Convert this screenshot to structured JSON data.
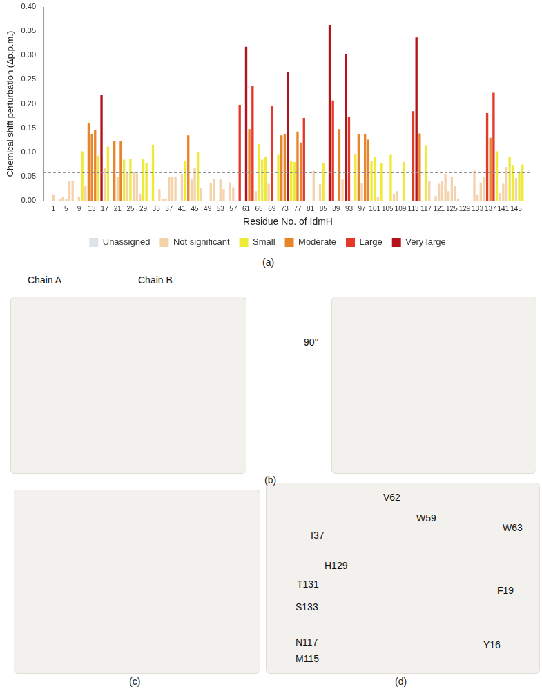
{
  "chart_data": {
    "type": "bar",
    "x_label": "Residue No. of IdmH",
    "y_label": "Chemical shift perturbation (Δp.p.m.)",
    "xlim": [
      0,
      148
    ],
    "xticks": [
      1,
      5,
      9,
      13,
      17,
      21,
      25,
      29,
      33,
      37,
      41,
      45,
      49,
      53,
      57,
      61,
      65,
      69,
      73,
      77,
      81,
      85,
      89,
      93,
      97,
      101,
      105,
      109,
      113,
      117,
      121,
      125,
      129,
      133,
      137,
      141,
      145
    ],
    "ylim": [
      0,
      0.4
    ],
    "yticks": [
      {
        "value": 0,
        "label": "0.00"
      },
      {
        "value": 0.05,
        "label": "0.05"
      },
      {
        "value": 0.1,
        "label": "0.10"
      },
      {
        "value": 0.15,
        "label": "0.15"
      },
      {
        "value": 0.2,
        "label": "0.20"
      },
      {
        "value": 0.25,
        "label": "0.25"
      },
      {
        "value": 0.3,
        "label": "0.30"
      },
      {
        "value": 0.35,
        "label": "0.35"
      },
      {
        "value": 0.4,
        "label": "0.40"
      }
    ],
    "threshold": 0.058,
    "grid": false,
    "legend": "bottom",
    "series": [
      {
        "name": "Unassigned",
        "color": "#dde3ea",
        "x": [
          2,
          8,
          19,
          31,
          33,
          40,
          48,
          49,
          52,
          55,
          58,
          60,
          70,
          80,
          81,
          83,
          86,
          89,
          94,
          104,
          105,
          109,
          111,
          112,
          116,
          119,
          128,
          129,
          130,
          131
        ],
        "values": [
          null,
          null,
          null,
          null,
          null,
          null,
          null,
          null,
          null,
          null,
          null,
          null,
          null,
          null,
          null,
          null,
          null,
          null,
          null,
          null,
          null,
          null,
          null,
          null,
          null,
          null,
          null,
          null,
          null,
          null
        ]
      },
      {
        "name": "Not significant",
        "color": "#f3d2ac",
        "x": [
          1,
          3,
          4,
          5,
          6,
          7,
          9,
          11,
          17,
          21,
          24,
          26,
          27,
          28,
          34,
          35,
          36,
          37,
          38,
          39,
          41,
          44,
          45,
          47,
          50,
          51,
          53,
          54,
          56,
          57,
          64,
          68,
          82,
          84,
          91,
          97,
          102,
          107,
          108,
          118,
          120,
          121,
          122,
          123,
          124,
          125,
          126,
          127,
          132,
          133,
          134,
          135,
          140,
          141,
          142,
          145
        ],
        "values": [
          0.012,
          0.004,
          0.008,
          0.004,
          0.04,
          0.042,
          0.008,
          0.03,
          0.068,
          0.05,
          0.06,
          0.06,
          0.056,
          0.015,
          0.024,
          0.004,
          0.005,
          0.05,
          0.05,
          0.05,
          0.055,
          0.044,
          0.068,
          0.027,
          0.037,
          0.046,
          0.044,
          0.024,
          0.038,
          0.028,
          0.02,
          0.035,
          0.062,
          0.034,
          0.044,
          0.036,
          0.008,
          0.015,
          0.02,
          0.04,
          0.01,
          0.035,
          0.04,
          0.055,
          0.02,
          0.05,
          0.03,
          0.005,
          0.062,
          0.012,
          0.038,
          0.05,
          0.016,
          0.035,
          0.07,
          0.047
        ]
      },
      {
        "name": "Small",
        "color": "#eeea3a",
        "x": [
          10,
          15,
          18,
          23,
          25,
          29,
          30,
          32,
          42,
          46,
          65,
          66,
          67,
          71,
          75,
          76,
          85,
          95,
          100,
          101,
          103,
          106,
          110,
          117,
          139,
          143,
          144,
          146,
          147
        ],
        "values": [
          0.102,
          0.093,
          0.112,
          0.085,
          0.086,
          0.086,
          0.077,
          0.116,
          0.082,
          0.1,
          0.117,
          0.085,
          0.09,
          0.095,
          0.082,
          0.08,
          0.078,
          0.096,
          0.082,
          0.091,
          0.078,
          0.095,
          0.08,
          0.115,
          0.102,
          0.09,
          0.074,
          0.06,
          0.075
        ]
      },
      {
        "name": "Moderate",
        "color": "#e8842a",
        "x": [
          12,
          13,
          14,
          20,
          22,
          43,
          62,
          72,
          73,
          77,
          78,
          90,
          96,
          98,
          99,
          115,
          137
        ],
        "values": [
          0.16,
          0.137,
          0.146,
          0.124,
          0.124,
          0.135,
          0.148,
          0.135,
          0.137,
          0.143,
          0.12,
          0.148,
          0.137,
          0.137,
          0.126,
          0.139,
          0.13
        ]
      },
      {
        "name": "Large",
        "color": "#e4392a",
        "x": [
          59,
          63,
          69,
          79,
          88,
          93,
          113,
          136,
          138
        ],
        "values": [
          0.198,
          0.237,
          0.195,
          0.171,
          0.207,
          0.174,
          0.185,
          0.181,
          0.223
        ]
      },
      {
        "name": "Very large",
        "color": "#b3141c",
        "x": [
          16,
          61,
          74,
          87,
          92,
          114
        ],
        "values": [
          0.218,
          0.318,
          0.265,
          0.363,
          0.302,
          0.337
        ]
      }
    ]
  },
  "panels": [
    {
      "label": "(a)"
    },
    {
      "label": "(b)",
      "texts": [
        "Chain A",
        "Chain B",
        "90°"
      ]
    },
    {
      "label": "(c)"
    },
    {
      "label": "(d)",
      "texts": [
        "I37",
        "V62",
        "W59",
        "W63",
        "H129",
        "T131",
        "F19",
        "S133",
        "N117",
        "M115",
        "Y16"
      ]
    }
  ]
}
